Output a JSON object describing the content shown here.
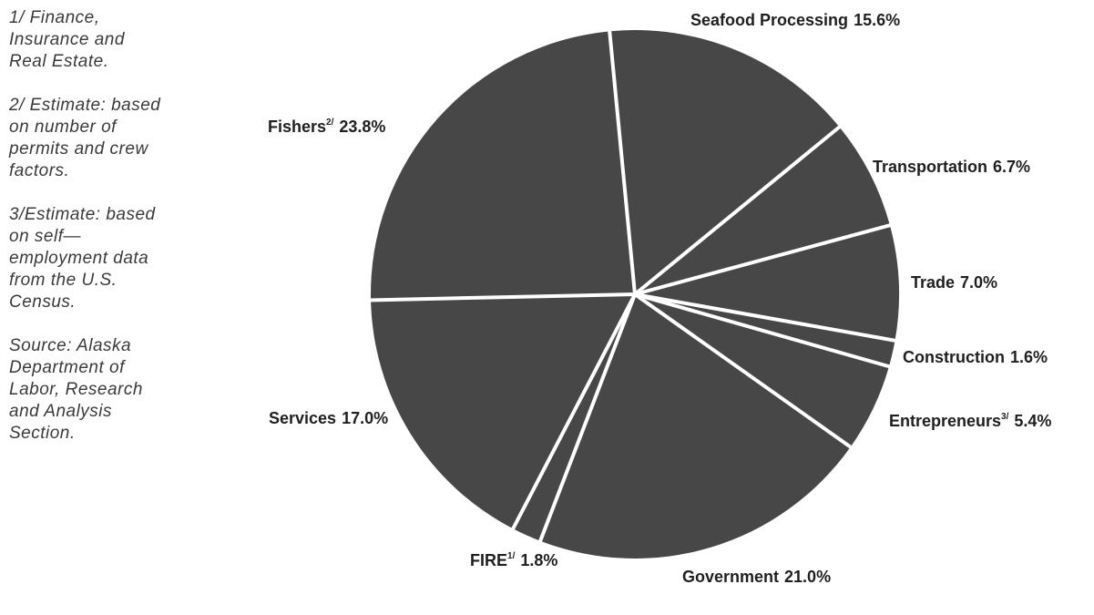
{
  "notes": [
    {
      "lines": [
        "1/ Finance,",
        "Insurance and",
        "Real Estate."
      ]
    },
    {
      "lines": [
        "2/ Estimate: based",
        "on number of",
        "permits and crew",
        "factors."
      ]
    },
    {
      "lines": [
        "3/Estimate: based",
        "on self—",
        "employment data",
        "from the U.S.",
        "Census."
      ]
    },
    {
      "lines": [
        "Source: Alaska",
        "Department of",
        "Labor, Research",
        "and Analysis",
        "Section."
      ]
    }
  ],
  "chart_data": {
    "type": "pie",
    "slice_color": "#474747",
    "separator_color": "#ffffff",
    "labels": [
      "Seafood Processing",
      "Transportation",
      "Trade",
      "Construction",
      "Entrepreneurs",
      "Government",
      "FIRE",
      "Services",
      "Fishers"
    ],
    "label_superscripts": [
      "",
      "",
      "",
      "",
      "3/",
      "",
      "1/",
      "",
      "2/"
    ],
    "values": [
      15.6,
      6.7,
      7.0,
      1.6,
      5.4,
      21.0,
      1.8,
      17.0,
      23.8
    ],
    "value_labels": [
      "15.6%",
      "6.7%",
      "7.0%",
      "1.6%",
      "5.4%",
      "21.0%",
      "1.8%",
      "17.0%",
      "23.8%"
    ]
  }
}
